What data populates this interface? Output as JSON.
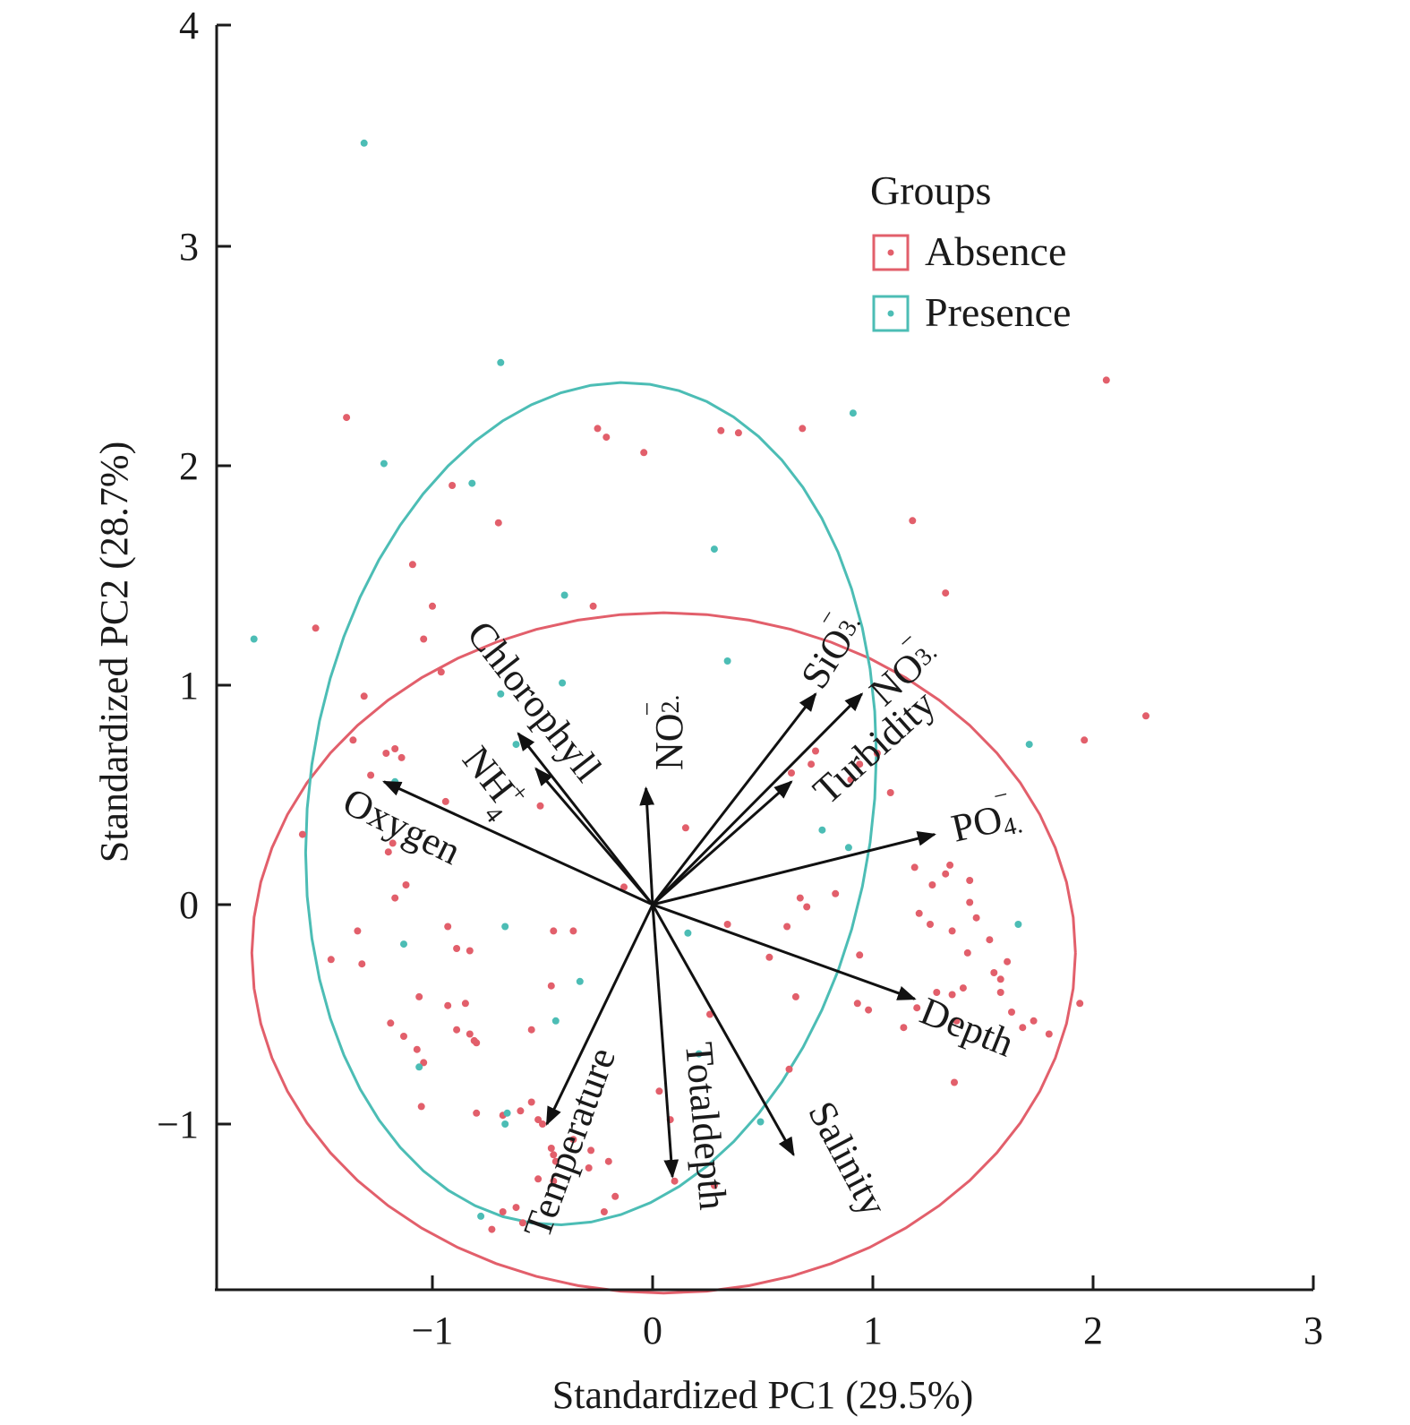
{
  "chart_data": {
    "type": "scatter",
    "subtype": "pca-biplot",
    "title": "",
    "xlabel": "Standardized PC1 (29.5%)",
    "ylabel": "Standardized PC2 (28.7%)",
    "xlim": [
      -1.95,
      3.0
    ],
    "ylim": [
      -1.7,
      4.0
    ],
    "xticks": [
      -1,
      0,
      1,
      2,
      3
    ],
    "yticks": [
      -1,
      0,
      1,
      2,
      3,
      4
    ],
    "xtick_labels": [
      "−1",
      "0",
      "1",
      "2",
      "3"
    ],
    "ytick_labels": [
      "−1",
      "0",
      "1",
      "2",
      "3",
      "4"
    ],
    "grid": false,
    "legend": {
      "title": "Groups",
      "position": "top-right",
      "entries": [
        {
          "name": "Absence",
          "color": "#E25F6B"
        },
        {
          "name": "Presence",
          "color": "#4CBDB5"
        }
      ]
    },
    "series": [
      {
        "name": "Absence",
        "color": "#E25F6B",
        "points": [
          [
            -1.39,
            2.22
          ],
          [
            -0.91,
            1.91
          ],
          [
            -0.7,
            1.74
          ],
          [
            -0.25,
            2.17
          ],
          [
            -0.21,
            2.13
          ],
          [
            -0.04,
            2.06
          ],
          [
            0.31,
            2.16
          ],
          [
            0.39,
            2.15
          ],
          [
            0.68,
            2.17
          ],
          [
            2.06,
            2.39
          ],
          [
            1.18,
            1.75
          ],
          [
            1.33,
            1.42
          ],
          [
            -1.09,
            1.55
          ],
          [
            -1.53,
            1.26
          ],
          [
            -1.0,
            1.36
          ],
          [
            -0.27,
            1.36
          ],
          [
            -1.04,
            1.21
          ],
          [
            -0.96,
            1.06
          ],
          [
            -1.31,
            0.95
          ],
          [
            -1.36,
            0.75
          ],
          [
            -1.17,
            0.71
          ],
          [
            -1.14,
            0.67
          ],
          [
            -0.51,
            0.45
          ],
          [
            -0.94,
            0.47
          ],
          [
            -1.59,
            0.32
          ],
          [
            -1.18,
            0.28
          ],
          [
            -1.2,
            0.24
          ],
          [
            -1.12,
            0.09
          ],
          [
            -1.17,
            0.03
          ],
          [
            -1.34,
            -0.12
          ],
          [
            -0.93,
            -0.1
          ],
          [
            -0.89,
            -0.2
          ],
          [
            -0.83,
            -0.21
          ],
          [
            -0.45,
            -0.12
          ],
          [
            -0.36,
            -0.12
          ],
          [
            -1.46,
            -0.25
          ],
          [
            -1.32,
            -0.27
          ],
          [
            -1.06,
            -0.42
          ],
          [
            -0.93,
            -0.46
          ],
          [
            -0.85,
            -0.45
          ],
          [
            -0.46,
            -0.37
          ],
          [
            -0.89,
            -0.57
          ],
          [
            -0.83,
            -0.59
          ],
          [
            -0.8,
            -0.63
          ],
          [
            -0.81,
            -0.62
          ],
          [
            -1.19,
            -0.54
          ],
          [
            -1.13,
            -0.6
          ],
          [
            -1.07,
            -0.66
          ],
          [
            -1.04,
            -0.72
          ],
          [
            -1.05,
            -0.92
          ],
          [
            -0.8,
            -0.95
          ],
          [
            -0.68,
            -0.96
          ],
          [
            -0.6,
            -0.94
          ],
          [
            -0.55,
            -0.9
          ],
          [
            -0.52,
            -0.98
          ],
          [
            -0.5,
            -1.0
          ],
          [
            -0.46,
            -1.11
          ],
          [
            -0.45,
            -1.14
          ],
          [
            -0.44,
            -1.17
          ],
          [
            -0.45,
            -1.26
          ],
          [
            -0.52,
            -1.25
          ],
          [
            -0.62,
            -1.38
          ],
          [
            -0.68,
            -1.4
          ],
          [
            -0.73,
            -1.48
          ],
          [
            -0.59,
            -1.45
          ],
          [
            -0.36,
            -1.07
          ],
          [
            -0.28,
            -1.12
          ],
          [
            -0.2,
            -1.17
          ],
          [
            -0.29,
            -1.2
          ],
          [
            -0.17,
            -1.33
          ],
          [
            -0.22,
            -1.4
          ],
          [
            0.03,
            -0.85
          ],
          [
            0.08,
            -0.98
          ],
          [
            0.1,
            -1.26
          ],
          [
            0.28,
            -1.28
          ],
          [
            0.26,
            -0.5
          ],
          [
            0.34,
            -0.09
          ],
          [
            0.53,
            -0.24
          ],
          [
            0.61,
            -0.1
          ],
          [
            0.65,
            -0.42
          ],
          [
            0.62,
            -0.75
          ],
          [
            0.67,
            0.03
          ],
          [
            0.7,
            -0.01
          ],
          [
            0.83,
            0.05
          ],
          [
            0.98,
            -0.48
          ],
          [
            0.93,
            -0.45
          ],
          [
            0.94,
            -0.23
          ],
          [
            0.9,
            0.57
          ],
          [
            0.72,
            0.64
          ],
          [
            0.74,
            0.7
          ],
          [
            0.63,
            0.6
          ],
          [
            0.94,
            0.64
          ],
          [
            1.08,
            0.51
          ],
          [
            1.19,
            0.17
          ],
          [
            1.27,
            0.09
          ],
          [
            1.26,
            -0.09
          ],
          [
            1.36,
            -0.12
          ],
          [
            1.21,
            -0.04
          ],
          [
            1.44,
            0.11
          ],
          [
            1.33,
            0.14
          ],
          [
            1.35,
            0.18
          ],
          [
            1.44,
            0.01
          ],
          [
            1.41,
            -0.38
          ],
          [
            1.36,
            -0.41
          ],
          [
            1.29,
            -0.4
          ],
          [
            1.47,
            -0.06
          ],
          [
            1.43,
            -0.22
          ],
          [
            1.53,
            -0.16
          ],
          [
            1.58,
            -0.34
          ],
          [
            1.61,
            -0.26
          ],
          [
            1.55,
            -0.31
          ],
          [
            1.38,
            -0.53
          ],
          [
            1.2,
            -0.47
          ],
          [
            1.14,
            -0.56
          ],
          [
            1.37,
            -0.81
          ],
          [
            1.58,
            -0.4
          ],
          [
            1.63,
            -0.49
          ],
          [
            1.68,
            -0.56
          ],
          [
            1.73,
            -0.53
          ],
          [
            1.8,
            -0.59
          ],
          [
            1.96,
            0.75
          ],
          [
            1.94,
            -0.45
          ],
          [
            2.24,
            0.86
          ],
          [
            1.02,
            0.69
          ],
          [
            0.15,
            0.35
          ],
          [
            -0.13,
            0.08
          ],
          [
            -1.21,
            0.69
          ],
          [
            -1.28,
            0.59
          ],
          [
            -0.55,
            -0.57
          ]
        ]
      },
      {
        "name": "Presence",
        "color": "#4CBDB5",
        "points": [
          [
            -1.31,
            3.47
          ],
          [
            -0.69,
            2.47
          ],
          [
            -1.22,
            2.01
          ],
          [
            -0.82,
            1.92
          ],
          [
            0.91,
            2.24
          ],
          [
            0.28,
            1.62
          ],
          [
            -1.81,
            1.21
          ],
          [
            -0.4,
            1.41
          ],
          [
            0.34,
            1.11
          ],
          [
            -0.41,
            1.01
          ],
          [
            -0.69,
            0.96
          ],
          [
            -0.62,
            0.73
          ],
          [
            -1.17,
            0.56
          ],
          [
            0.77,
            0.34
          ],
          [
            0.89,
            0.26
          ],
          [
            1.71,
            0.73
          ],
          [
            1.66,
            -0.09
          ],
          [
            -0.67,
            -0.1
          ],
          [
            -1.13,
            -0.18
          ],
          [
            -0.33,
            -0.35
          ],
          [
            -0.44,
            -0.53
          ],
          [
            0.16,
            -0.13
          ],
          [
            -1.06,
            -0.74
          ],
          [
            -0.66,
            -0.95
          ],
          [
            -0.67,
            -1.0
          ],
          [
            0.21,
            -0.68
          ],
          [
            0.49,
            -0.99
          ],
          [
            -0.78,
            -1.42
          ]
        ]
      }
    ],
    "ellipses": [
      {
        "group": "Absence",
        "center": [
          0.05,
          -0.22
        ],
        "semi_axes": [
          1.87,
          1.55
        ],
        "angle_deg": 0
      },
      {
        "group": "Presence",
        "center": [
          -0.28,
          0.46
        ],
        "semi_axes": [
          1.28,
          1.93
        ],
        "angle_deg": -8
      }
    ],
    "loadings": [
      {
        "name": "Oxygen",
        "x": -1.22,
        "y": 0.56
      },
      {
        "name": "Chlorophyll",
        "x": -0.61,
        "y": 0.78
      },
      {
        "name": "NH4+",
        "x": -0.53,
        "y": 0.62
      },
      {
        "name": "NO2-",
        "x": -0.03,
        "y": 0.53
      },
      {
        "name": "SiO3-",
        "x": 0.74,
        "y": 0.96
      },
      {
        "name": "NO3-",
        "x": 0.95,
        "y": 0.96
      },
      {
        "name": "Turbidity",
        "x": 0.63,
        "y": 0.56
      },
      {
        "name": "PO4-",
        "x": 1.28,
        "y": 0.32
      },
      {
        "name": "Depth",
        "x": 1.19,
        "y": -0.43
      },
      {
        "name": "Salinity",
        "x": 0.64,
        "y": -1.14
      },
      {
        "name": "Totaldepth",
        "x": 0.09,
        "y": -1.24
      },
      {
        "name": "Temperature",
        "x": -0.48,
        "y": -1.0
      }
    ]
  },
  "arrow_labels": {
    "oxygen": {
      "main": "Oxygen"
    },
    "chlorophyll": {
      "main": "Chlorophyll"
    },
    "nh4": {
      "main": "NH",
      "sub": "4",
      "sup": "+"
    },
    "no2": {
      "main": "NO",
      "sub": "2.",
      "sup": "−"
    },
    "sio3": {
      "main": "SiO",
      "sub": "3.",
      "sup": "−"
    },
    "no3": {
      "main": "NO",
      "sub": "3.",
      "sup": "−"
    },
    "turbidity": {
      "main": "Turbidity"
    },
    "po4": {
      "main": "PO",
      "sub": "4.",
      "sup": "−"
    },
    "depth": {
      "main": "Depth"
    },
    "salinity": {
      "main": "Salinity"
    },
    "totaldepth": {
      "main": "Totaldepth"
    },
    "temperature": {
      "main": "Temperature"
    }
  }
}
